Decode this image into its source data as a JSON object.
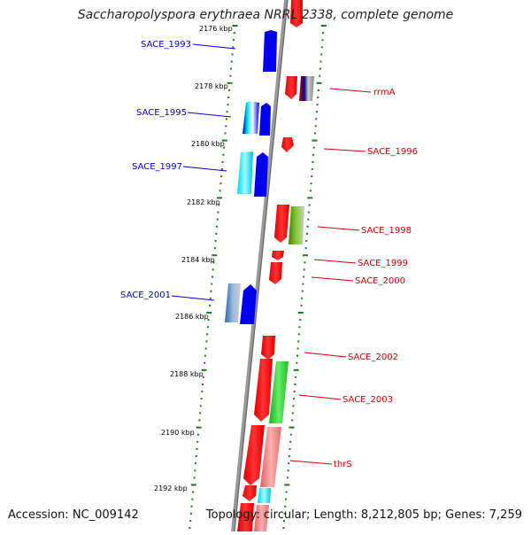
{
  "title": "Saccharopolyspora erythraea NRRL 2338, complete genome",
  "footer": {
    "accession": "Accession: NC_009142",
    "topology": "Topology: circular; Length: 8,212,805 bp; Genes: 7,259"
  },
  "colors": {
    "backbone": "#888888",
    "forward_gene": "#ff0000",
    "reverse_gene": "#0000ee",
    "left_label": "#0000cc",
    "right_label": "#cc0000",
    "tick": "#1f7a1f",
    "cyan_feature": "#00e5ff",
    "green_feature": "#33cc33",
    "pink_feature": "#f08080"
  },
  "kbp_labels": [
    "2176 kbp",
    "2178 kbp",
    "2180 kbp",
    "2182 kbp",
    "2184 kbp",
    "2186 kbp",
    "2188 kbp",
    "2190 kbp",
    "2192 kbp"
  ],
  "left_labels": [
    "SACE_1993",
    "SACE_1995",
    "SACE_1997",
    "SACE_2001"
  ],
  "right_labels": [
    "rrmA",
    "SACE_1996",
    "SACE_1998",
    "SACE_1999",
    "SACE_2000",
    "SACE_2002",
    "SACE_2003",
    "thrS"
  ]
}
